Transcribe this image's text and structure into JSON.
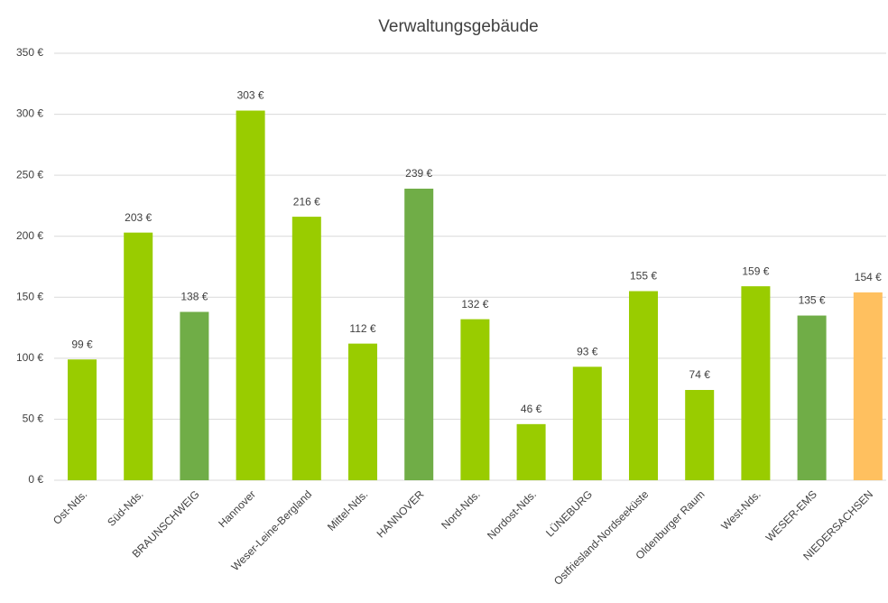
{
  "chart_data": {
    "type": "bar",
    "title": "Verwaltungsgebäude",
    "categories": [
      "Ost-Nds.",
      "Süd-Nds.",
      "BRAUNSCHWEIG",
      "Hannover",
      "Weser-Leine-Bergland",
      "Mittel-Nds.",
      "HANNOVER",
      "Nord-Nds.",
      "Nordost-Nds.",
      "LÜNEBURG",
      "Ostfriesland-Nordseeküste",
      "Oldenburger Raum",
      "West-Nds.",
      "WESER-EMS",
      "NIEDERSACHSEN"
    ],
    "values": [
      99,
      203,
      138,
      303,
      216,
      112,
      239,
      132,
      46,
      93,
      155,
      74,
      159,
      135,
      154
    ],
    "value_labels": [
      "99 €",
      "203 €",
      "138 €",
      "303 €",
      "216 €",
      "112 €",
      "239 €",
      "132 €",
      "46 €",
      "93 €",
      "155 €",
      "74 €",
      "159 €",
      "135 €",
      "154 €"
    ],
    "colors": [
      "#99cc00",
      "#99cc00",
      "#70ad47",
      "#99cc00",
      "#99cc00",
      "#99cc00",
      "#70ad47",
      "#99cc00",
      "#99cc00",
      "#99cc00",
      "#99cc00",
      "#99cc00",
      "#99cc00",
      "#70ad47",
      "#ffc05f"
    ],
    "ylim": [
      0,
      350
    ],
    "yticks": [
      {
        "value": 0,
        "label": "0 €"
      },
      {
        "value": 50,
        "label": "50 €"
      },
      {
        "value": 100,
        "label": "100 €"
      },
      {
        "value": 150,
        "label": "150 €"
      },
      {
        "value": 200,
        "label": "200 €"
      },
      {
        "value": 250,
        "label": "250 €"
      },
      {
        "value": 300,
        "label": "300 €"
      },
      {
        "value": 350,
        "label": "350 €"
      }
    ],
    "grid": true
  }
}
